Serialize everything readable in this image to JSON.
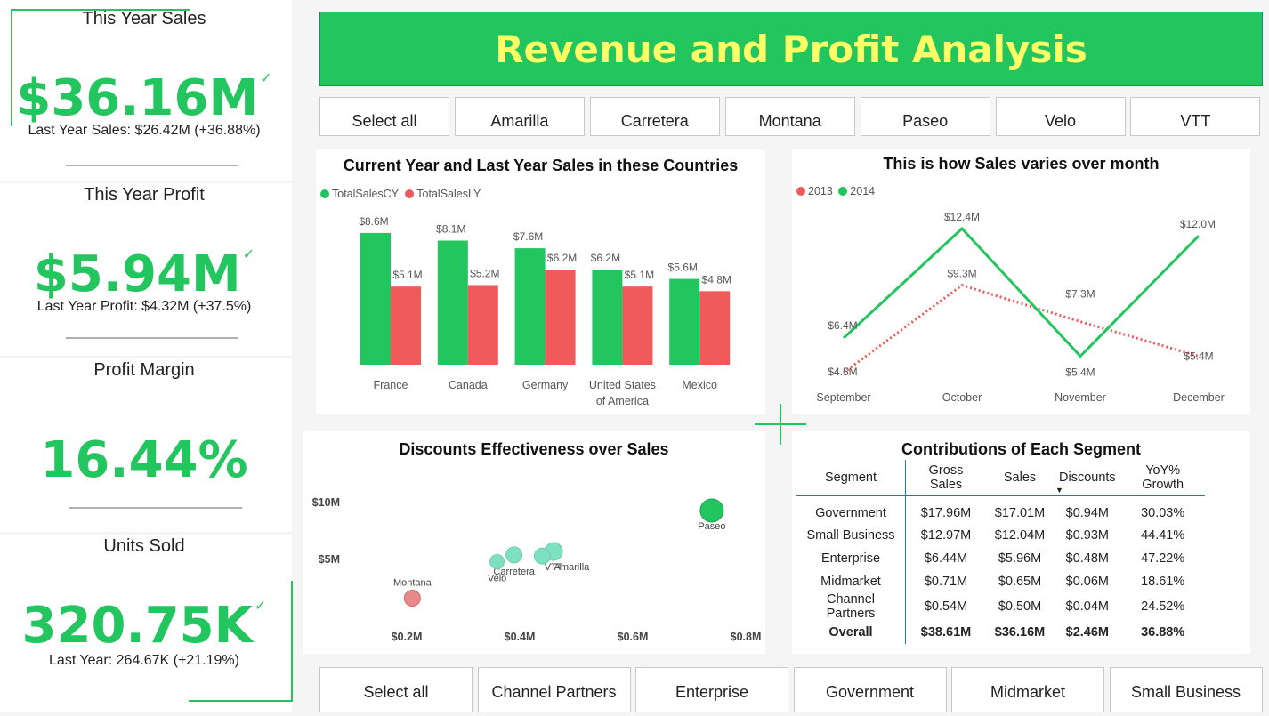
{
  "title": "Revenue and Profit Analysis",
  "colors": {
    "green": "#22c55e",
    "red": "#f05a5a",
    "teal": "#7ee0c0",
    "salmon": "#e88a8a",
    "title_text": "#ffff66"
  },
  "kpis": {
    "sales": {
      "title": "This Year Sales",
      "value": "$36.16M",
      "sub": "Last Year Sales: $26.42M (+36.88%)"
    },
    "profit": {
      "title": "This Year Profit",
      "value": "$5.94M",
      "sub": "Last Year Profit: $4.32M (+37.5%)"
    },
    "margin": {
      "title": "Profit Margin",
      "value": "16.44%"
    },
    "units": {
      "title": "Units Sold",
      "value": "320.75K",
      "sub": "Last Year: 264.67K (+21.19%)"
    },
    "check_glyph": "✓"
  },
  "product_slicer": [
    "Select all",
    "Amarilla",
    "Carretera",
    "Montana",
    "Paseo",
    "Velo",
    "VTT"
  ],
  "segment_slicer": [
    "Select all",
    "Channel Partners",
    "Enterprise",
    "Government",
    "Midmarket",
    "Small Business"
  ],
  "chart_data": [
    {
      "type": "bar",
      "title": "Current Year and Last Year Sales in these Countries",
      "categories": [
        "France",
        "Canada",
        "Germany",
        "United States of America",
        "Mexico"
      ],
      "category_lines": [
        [
          "France"
        ],
        [
          "Canada"
        ],
        [
          "Germany"
        ],
        [
          "United States",
          "of America"
        ],
        [
          "Mexico"
        ]
      ],
      "series": [
        {
          "name": "TotalSalesCY",
          "values": [
            8.6,
            8.1,
            7.6,
            6.2,
            5.6
          ],
          "labels": [
            "$8.6M",
            "$8.1M",
            "$7.6M",
            "$6.2M",
            "$5.6M"
          ],
          "color": "#22c55e"
        },
        {
          "name": "TotalSalesLY",
          "values": [
            5.1,
            5.2,
            6.2,
            5.1,
            4.8
          ],
          "labels": [
            "$5.1M",
            "$5.2M",
            "$6.2M",
            "$5.1M",
            "$4.8M"
          ],
          "color": "#f05a5a"
        }
      ],
      "ylim": [
        0,
        9
      ]
    },
    {
      "type": "line",
      "title": "This is how Sales varies over month",
      "categories": [
        "September",
        "October",
        "November",
        "December"
      ],
      "series": [
        {
          "name": "2013",
          "values": [
            4.5,
            9.3,
            7.3,
            5.4
          ],
          "labels": [
            "$4.5M",
            "$9.3M",
            "$7.3M",
            "$5.4M"
          ],
          "color": "#f05a5a",
          "style": "dotted"
        },
        {
          "name": "2014",
          "values": [
            6.4,
            12.4,
            5.4,
            12.0
          ],
          "labels": [
            "$6.4M",
            "$12.4M",
            "$5.4M",
            "$12.0M"
          ],
          "color": "#22c55e",
          "style": "solid"
        }
      ],
      "ylim": [
        4,
        13
      ]
    },
    {
      "type": "scatter",
      "title": "Discounts Effectiveness over Sales",
      "x_ticks": [
        "$0.2M",
        "$0.4M",
        "$0.6M",
        "$0.8M"
      ],
      "x_tick_values": [
        0.2,
        0.4,
        0.6,
        0.8
      ],
      "y_ticks": [
        "$5M",
        "$10M"
      ],
      "y_tick_values": [
        5,
        10
      ],
      "xlim": [
        0.2,
        0.8
      ],
      "ylim": [
        0,
        11
      ],
      "points": [
        {
          "name": "Paseo",
          "x": 0.74,
          "y": 9.3,
          "color": "#22c55e",
          "size": 13
        },
        {
          "name": "VTT",
          "x": 0.46,
          "y": 5.7,
          "color": "#7ee0c0",
          "size": 10
        },
        {
          "name": "Amarilla",
          "x": 0.44,
          "y": 5.3,
          "color": "#7ee0c0",
          "size": 9
        },
        {
          "name": "Carretera",
          "x": 0.39,
          "y": 5.4,
          "color": "#7ee0c0",
          "size": 9
        },
        {
          "name": "Velo",
          "x": 0.36,
          "y": 4.8,
          "color": "#7ee0c0",
          "size": 8
        },
        {
          "name": "Montana",
          "x": 0.21,
          "y": 1.6,
          "color": "#e88a8a",
          "size": 9
        }
      ]
    },
    {
      "type": "table",
      "title": "Contributions of Each Segment",
      "columns": [
        "Segment",
        "Gross Sales",
        "Sales",
        "Discounts",
        "YoY% Growth"
      ],
      "sort_glyph": "▼",
      "rows": [
        [
          "Government",
          "$17.96M",
          "$17.01M",
          "$0.94M",
          "30.03%"
        ],
        [
          "Small Business",
          "$12.97M",
          "$12.04M",
          "$0.93M",
          "44.41%"
        ],
        [
          "Enterprise",
          "$6.44M",
          "$5.96M",
          "$0.48M",
          "47.22%"
        ],
        [
          "Midmarket",
          "$0.71M",
          "$0.65M",
          "$0.06M",
          "18.61%"
        ],
        [
          "Channel Partners",
          "$0.54M",
          "$0.50M",
          "$0.04M",
          "24.52%"
        ]
      ],
      "total": [
        "Overall",
        "$38.61M",
        "$36.16M",
        "$2.46M",
        "36.88%"
      ]
    }
  ]
}
